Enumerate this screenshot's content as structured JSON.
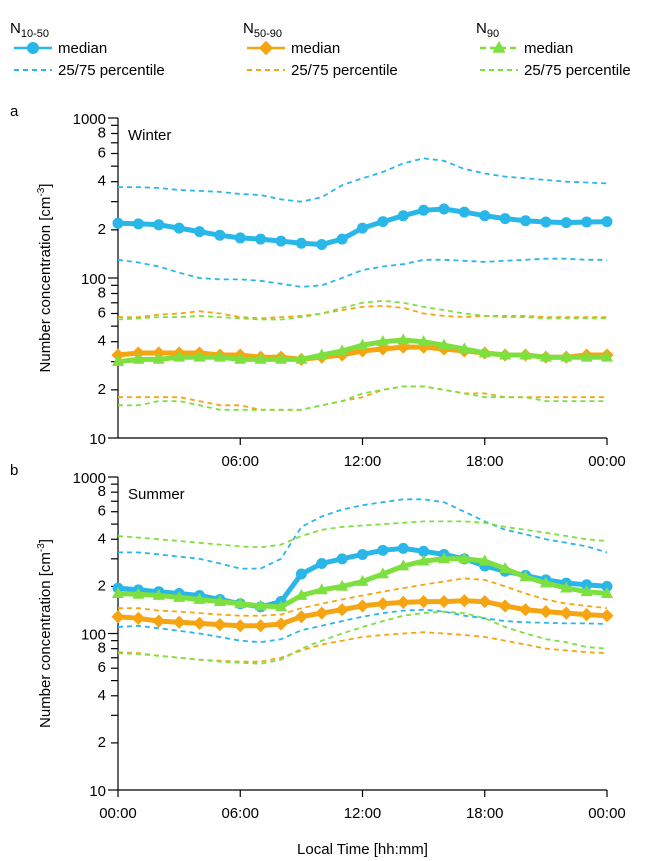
{
  "legend": [
    {
      "label": "N",
      "subscript": "10-50",
      "color": "#29b6e8",
      "marker": "circle",
      "median_dash": false,
      "entries": [
        "median",
        "25/75 percentile"
      ]
    },
    {
      "label": "N",
      "subscript": "50-90",
      "color": "#f5a511",
      "marker": "diamond",
      "median_dash": false,
      "entries": [
        "median",
        "25/75 percentile"
      ]
    },
    {
      "label": "N",
      "subscript": "90",
      "color": "#7ee040",
      "marker": "triangle",
      "median_dash": true,
      "entries": [
        "median",
        "25/75 percentile"
      ]
    }
  ],
  "chart_data": [
    {
      "type": "line",
      "panel": "a",
      "title": "Winter",
      "log_y": true,
      "ylabel": {
        "text": "Number concentration [cm",
        "sup": "-3",
        "end": "]"
      },
      "xlim": [
        0,
        24
      ],
      "ylim": [
        10,
        1000
      ],
      "xticks": [
        {
          "value": 6,
          "label": "06:00"
        },
        {
          "value": 12,
          "label": "12:00"
        },
        {
          "value": 18,
          "label": "18:00"
        },
        {
          "value": 24,
          "label": "00:00"
        }
      ],
      "yticks": [
        10,
        {
          "value": 20,
          "label": "2"
        },
        {
          "value": 40,
          "label": "4"
        },
        {
          "value": 60,
          "label": "6"
        },
        {
          "value": 80,
          "label": "8"
        },
        100,
        {
          "value": 200,
          "label": "2"
        },
        {
          "value": 400,
          "label": "4"
        },
        {
          "value": 600,
          "label": "6"
        },
        {
          "value": 800,
          "label": "8"
        },
        1000
      ],
      "yminorticks": [
        30,
        50,
        70,
        90,
        300,
        500,
        700,
        900
      ],
      "x": [
        0,
        1,
        2,
        3,
        4,
        5,
        6,
        7,
        8,
        9,
        10,
        11,
        12,
        13,
        14,
        15,
        16,
        17,
        18,
        19,
        20,
        21,
        22,
        23,
        24
      ],
      "series": [
        {
          "color": "#29b6e8",
          "dash": true,
          "values": [
            370,
            370,
            365,
            355,
            350,
            345,
            335,
            330,
            310,
            300,
            320,
            380,
            420,
            460,
            520,
            560,
            540,
            480,
            450,
            430,
            420,
            410,
            400,
            395,
            390
          ]
        },
        {
          "color": "#29b6e8",
          "dash": true,
          "values": [
            130,
            125,
            118,
            108,
            100,
            98,
            98,
            96,
            92,
            88,
            90,
            100,
            112,
            118,
            122,
            130,
            130,
            128,
            126,
            128,
            130,
            132,
            132,
            130,
            130
          ]
        },
        {
          "color": "#f5a511",
          "dash": true,
          "values": [
            57,
            57,
            59,
            60,
            62,
            60,
            57,
            56,
            57,
            58,
            60,
            63,
            66,
            67,
            65,
            60,
            58,
            57,
            58,
            58,
            58,
            57,
            57,
            57,
            57
          ]
        },
        {
          "color": "#f5a511",
          "dash": true,
          "values": [
            18,
            18,
            18,
            18,
            17,
            16,
            16,
            15,
            15,
            15,
            16,
            17,
            18,
            20,
            21,
            21,
            20,
            19,
            19,
            18,
            18,
            18,
            18,
            18,
            18
          ]
        },
        {
          "color": "#7ee040",
          "dash": true,
          "values": [
            55,
            56,
            57,
            57,
            58,
            57,
            56,
            55,
            55,
            57,
            60,
            65,
            70,
            72,
            70,
            66,
            63,
            60,
            58,
            57,
            57,
            56,
            56,
            56,
            56
          ]
        },
        {
          "color": "#7ee040",
          "dash": true,
          "values": [
            16,
            16,
            17,
            17,
            16,
            15,
            15,
            15,
            15,
            15,
            16,
            17,
            19,
            20,
            21,
            21,
            20,
            19,
            18,
            18,
            18,
            17,
            17,
            17,
            17
          ]
        },
        {
          "color": "#29b6e8",
          "marker": "circle",
          "values": [
            220,
            218,
            215,
            205,
            195,
            185,
            178,
            175,
            170,
            165,
            162,
            175,
            205,
            225,
            245,
            265,
            270,
            258,
            245,
            235,
            228,
            224,
            222,
            224,
            225
          ]
        },
        {
          "color": "#f5a511",
          "marker": "diamond",
          "values": [
            33,
            34,
            34,
            34,
            34,
            33,
            33,
            32,
            32,
            31,
            32,
            33,
            35,
            36,
            37,
            37,
            36,
            35,
            34,
            33,
            33,
            32,
            32,
            33,
            33
          ]
        },
        {
          "color": "#7ee040",
          "marker": "triangle",
          "values": [
            30,
            31,
            31,
            32,
            32,
            32,
            31,
            31,
            31,
            31,
            33,
            35,
            38,
            40,
            41,
            40,
            38,
            36,
            34,
            33,
            33,
            32,
            32,
            32,
            32
          ]
        }
      ]
    },
    {
      "type": "line",
      "panel": "b",
      "title": "Summer",
      "log_y": true,
      "ylabel": {
        "text": "Number concentration [cm",
        "sup": "-3",
        "end": "]"
      },
      "xlabel": "Local Time [hh:mm]",
      "xlim": [
        0,
        24
      ],
      "ylim": [
        10,
        1000
      ],
      "xticks": [
        {
          "value": 0,
          "label": "00:00"
        },
        {
          "value": 6,
          "label": "06:00"
        },
        {
          "value": 12,
          "label": "12:00"
        },
        {
          "value": 18,
          "label": "18:00"
        },
        {
          "value": 24,
          "label": "00:00"
        }
      ],
      "yticks": [
        10,
        {
          "value": 20,
          "label": "2"
        },
        {
          "value": 40,
          "label": "4"
        },
        {
          "value": 60,
          "label": "6"
        },
        {
          "value": 80,
          "label": "8"
        },
        100,
        {
          "value": 200,
          "label": "2"
        },
        {
          "value": 400,
          "label": "4"
        },
        {
          "value": 600,
          "label": "6"
        },
        {
          "value": 800,
          "label": "8"
        },
        1000
      ],
      "yminorticks": [
        30,
        50,
        70,
        90,
        300,
        500,
        700,
        900
      ],
      "x": [
        0,
        1,
        2,
        3,
        4,
        5,
        6,
        7,
        8,
        9,
        10,
        11,
        12,
        13,
        14,
        15,
        16,
        17,
        18,
        19,
        20,
        21,
        22,
        23,
        24
      ],
      "series": [
        {
          "color": "#29b6e8",
          "dash": true,
          "values": [
            330,
            330,
            320,
            310,
            300,
            280,
            260,
            260,
            300,
            480,
            560,
            620,
            660,
            690,
            720,
            720,
            690,
            600,
            520,
            460,
            430,
            400,
            380,
            360,
            330
          ]
        },
        {
          "color": "#29b6e8",
          "dash": true,
          "values": [
            110,
            112,
            108,
            104,
            100,
            95,
            90,
            88,
            92,
            105,
            112,
            120,
            128,
            135,
            140,
            142,
            138,
            130,
            125,
            120,
            118,
            117,
            116,
            116,
            115
          ]
        },
        {
          "color": "#f5a511",
          "dash": true,
          "values": [
            145,
            145,
            140,
            138,
            135,
            132,
            130,
            130,
            132,
            145,
            155,
            165,
            175,
            185,
            195,
            205,
            215,
            225,
            220,
            200,
            180,
            165,
            155,
            150,
            145
          ]
        },
        {
          "color": "#f5a511",
          "dash": true,
          "values": [
            76,
            75,
            72,
            70,
            68,
            67,
            66,
            66,
            70,
            78,
            85,
            90,
            95,
            98,
            100,
            102,
            100,
            98,
            95,
            90,
            85,
            80,
            78,
            76,
            75
          ]
        },
        {
          "color": "#7ee040",
          "dash": true,
          "values": [
            420,
            410,
            400,
            390,
            380,
            370,
            360,
            355,
            370,
            420,
            460,
            480,
            490,
            500,
            510,
            520,
            520,
            520,
            510,
            480,
            460,
            440,
            420,
            400,
            390
          ]
        },
        {
          "color": "#7ee040",
          "dash": true,
          "values": [
            75,
            74,
            72,
            70,
            68,
            66,
            65,
            64,
            68,
            80,
            90,
            100,
            110,
            120,
            130,
            135,
            138,
            135,
            125,
            110,
            100,
            92,
            88,
            82,
            80
          ]
        },
        {
          "color": "#29b6e8",
          "marker": "circle",
          "values": [
            195,
            190,
            185,
            180,
            175,
            165,
            155,
            148,
            160,
            240,
            280,
            300,
            320,
            340,
            350,
            335,
            320,
            300,
            270,
            250,
            235,
            220,
            210,
            205,
            200
          ]
        },
        {
          "color": "#f5a511",
          "marker": "diamond",
          "values": [
            128,
            125,
            120,
            118,
            116,
            114,
            112,
            112,
            115,
            128,
            135,
            142,
            150,
            155,
            158,
            160,
            160,
            162,
            160,
            150,
            142,
            138,
            135,
            132,
            130
          ]
        },
        {
          "color": "#7ee040",
          "marker": "triangle",
          "values": [
            180,
            178,
            175,
            170,
            165,
            160,
            155,
            150,
            148,
            175,
            190,
            200,
            215,
            240,
            270,
            290,
            300,
            300,
            290,
            260,
            230,
            210,
            195,
            185,
            180
          ]
        }
      ]
    }
  ]
}
